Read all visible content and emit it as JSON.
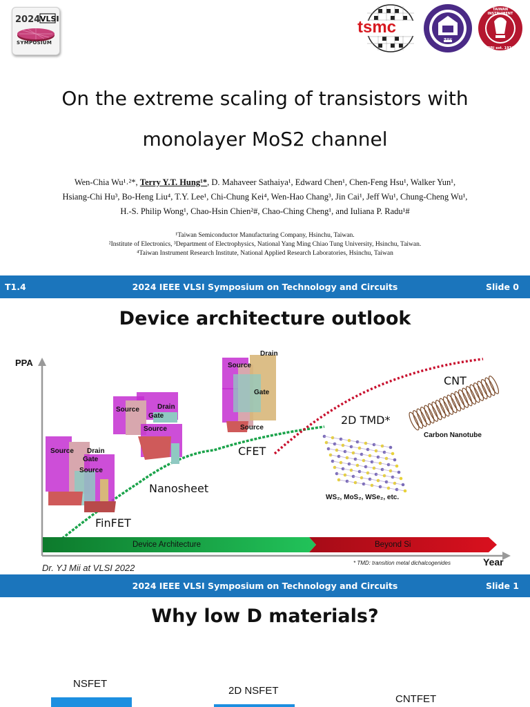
{
  "slide0": {
    "conf_logo": {
      "year": "2024",
      "name": "VLSI",
      "subtitle": "SYMPOSIUM"
    },
    "org_logos": {
      "tsmc": "tsmc",
      "nycu_year": "1896",
      "tiri_name": "TAIWAN INSTRUMENT",
      "tiri_est": "TIRI est. 1974"
    },
    "title_line1": "On the extreme scaling of transistors with",
    "title_line2": "monolayer MoS2 channel",
    "authors_line1_a": "Wen-Chia Wu¹˒²*, ",
    "authors_line1_b": "Terry Y.T. Hung¹*",
    "authors_line1_c": ", D. Mahaveer Sathaiya¹, Edward Chen¹, Chen-Feng Hsu¹, Walker Yun¹,",
    "authors_line2": "Hsiang-Chi Hu³, Bo-Heng Liu⁴, T.Y. Lee¹, Chi-Chung Kei⁴, Wen-Hao Chang³, Jin Cai¹, Jeff Wu¹, Chung-Cheng Wu¹,",
    "authors_line3": "H.-S. Philip Wong¹, Chao-Hsin Chien²#, Chao-Ching Cheng¹, and Iuliana P. Radu¹#",
    "affil1": "¹Taiwan Semiconductor Manufacturing Company, Hsinchu, Taiwan.",
    "affil2": "²Institute of Electronics, ³Department of Electrophysics, National Yang Ming Chiao Tung University, Hsinchu, Taiwan.",
    "affil3": "⁴Taiwan Instrument Research Institute, National Applied Research Laboratories, Hsinchu, Taiwan",
    "footer": {
      "left": "T1.4",
      "center": "2024 IEEE VLSI Symposium on Technology and Circuits",
      "right": "Slide 0"
    }
  },
  "slide1": {
    "title": "Device architecture outlook",
    "y_axis": "PPA",
    "x_axis": "Year",
    "labels": {
      "finfet": "FinFET",
      "nanosheet": "Nanosheet",
      "cfet": "CFET",
      "tmd": "2D TMD*",
      "cnt": "CNT",
      "carbon_nanotube": "Carbon Nanotube",
      "tmd_examples": "WS₂, MoS₂, WSe₂, etc."
    },
    "device_labels": {
      "source": "Source",
      "drain": "Drain",
      "gate": "Gate"
    },
    "arrow_left": "Device Architecture",
    "arrow_right": "Beyond Si",
    "credit": "Dr. YJ Mii at VLSI 2022",
    "footnote": "* TMD: transition metal dichalcogenides",
    "footer": {
      "center": "2024 IEEE VLSI Symposium on Technology and Circuits",
      "right": "Slide 1"
    }
  },
  "slide2": {
    "title": "Why low D materials?",
    "nsfet": "NSFET",
    "nsfet2d": "2D NSFET",
    "cntfet": "CNTFET"
  },
  "colors": {
    "footer_blue": "#1b75bc",
    "green": "#1aa34a",
    "red": "#c8102e",
    "magenta": "#c02fd0"
  }
}
